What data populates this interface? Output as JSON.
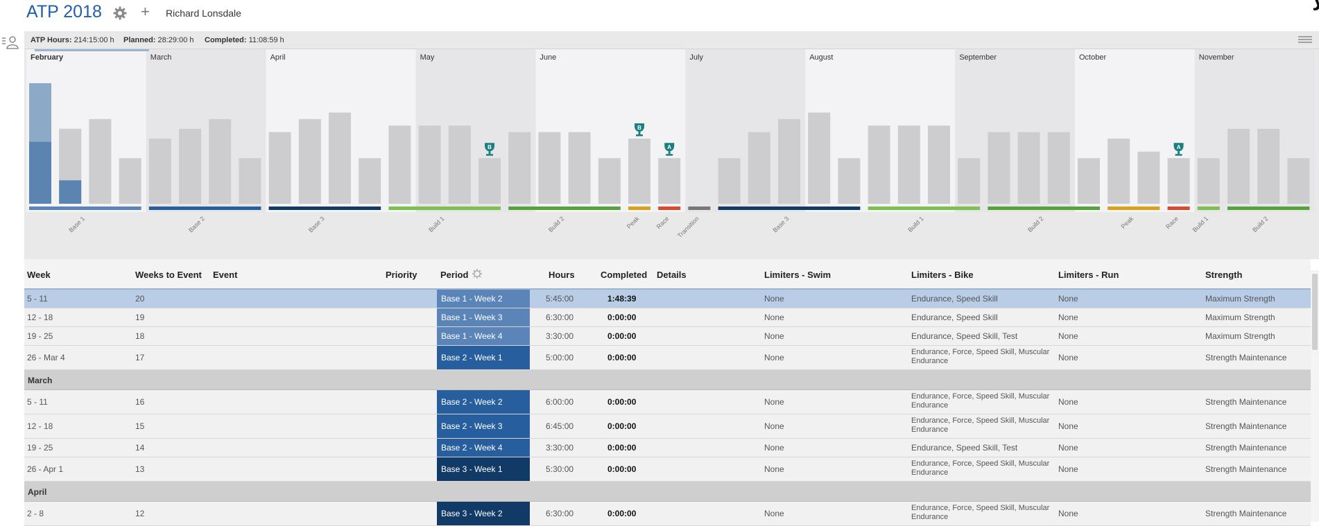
{
  "header": {
    "title": "ATP 2018",
    "athlete": "Richard Lonsdale",
    "corner_text": "y"
  },
  "stats": {
    "atp_hours_label": "ATP Hours:",
    "atp_hours_value": "214:15:00 h",
    "planned_label": "Planned:",
    "planned_value": "28:29:00 h",
    "completed_label": "Completed:",
    "completed_value": "11:08:59 h"
  },
  "chart_data": {
    "type": "bar",
    "months": [
      "February",
      "March",
      "April",
      "May",
      "June",
      "July",
      "August",
      "September",
      "October",
      "November"
    ],
    "weekly_planned_hours": [
      18.5,
      11.5,
      13,
      7,
      10,
      11.5,
      13,
      7,
      11,
      13,
      14,
      7,
      12,
      12,
      12,
      7,
      11,
      11,
      11,
      7,
      10,
      7,
      0,
      7,
      11,
      13,
      14,
      7,
      12,
      12,
      12,
      7,
      11,
      11,
      11,
      7,
      10,
      8,
      7,
      7,
      11.5,
      11.5,
      7
    ],
    "weekly_completed_hours": [
      9.5,
      3.6
    ],
    "events": [
      {
        "week": 15,
        "priority": "B"
      },
      {
        "week": 20,
        "priority": "B"
      },
      {
        "week": 21,
        "priority": "A"
      },
      {
        "week": 38,
        "priority": "A"
      }
    ],
    "periods": [
      {
        "name": "Base 1",
        "start": 0,
        "end": 3,
        "color": "#5b85b8"
      },
      {
        "name": "Base 2",
        "start": 4,
        "end": 7,
        "color": "#275f9e"
      },
      {
        "name": "Base 3",
        "start": 8,
        "end": 11,
        "color": "#123a66"
      },
      {
        "name": "Build 1",
        "start": 12,
        "end": 15,
        "color": "#7cc04f"
      },
      {
        "name": "Build 2",
        "start": 16,
        "end": 19,
        "color": "#54a33c"
      },
      {
        "name": "Peak",
        "start": 20,
        "end": 20,
        "color": "#d9a21c"
      },
      {
        "name": "Race",
        "start": 21,
        "end": 21,
        "color": "#d84a2c"
      },
      {
        "name": "Transition",
        "start": 22,
        "end": 22,
        "color": "#777777"
      },
      {
        "name": "Base 3",
        "start": 23,
        "end": 27,
        "color": "#123a66"
      },
      {
        "name": "Build 1",
        "start": 28,
        "end": 31,
        "color": "#7cc04f"
      },
      {
        "name": "Build 2",
        "start": 32,
        "end": 35,
        "color": "#54a33c"
      },
      {
        "name": "Peak",
        "start": 36,
        "end": 37,
        "color": "#d9a21c"
      },
      {
        "name": "Race",
        "start": 38,
        "end": 38,
        "color": "#d84a2c"
      },
      {
        "name": "Build 1",
        "start": 39,
        "end": 39,
        "color": "#7cc04f"
      },
      {
        "name": "Build 2",
        "start": 40,
        "end": 42,
        "color": "#54a33c"
      }
    ]
  },
  "table": {
    "columns": {
      "week": "Week",
      "weeks_to_event": "Weeks to Event",
      "event": "Event",
      "priority": "Priority",
      "period": "Period",
      "hours": "Hours",
      "completed": "Completed",
      "details": "Details",
      "limiters_swim": "Limiters - Swim",
      "limiters_bike": "Limiters - Bike",
      "limiters_run": "Limiters - Run",
      "strength": "Strength"
    },
    "rows": [
      {
        "week": "5 - 11",
        "wte": "20",
        "period": "Base 1 - Week 2",
        "period_color": "#5b85b8",
        "hours": "5:45:00",
        "completed": "1:48:39",
        "swim": "None",
        "bike": "Endurance, Speed Skill",
        "run": "None",
        "strength": "Maximum Strength"
      },
      {
        "week": "12 - 18",
        "wte": "19",
        "period": "Base 1 - Week 3",
        "period_color": "#5b85b8",
        "hours": "6:30:00",
        "completed": "0:00:00",
        "swim": "None",
        "bike": "Endurance, Speed Skill",
        "run": "None",
        "strength": "Maximum Strength"
      },
      {
        "week": "19 - 25",
        "wte": "18",
        "period": "Base 1 - Week 4",
        "period_color": "#5b85b8",
        "hours": "3:30:00",
        "completed": "0:00:00",
        "swim": "None",
        "bike": "Endurance, Speed Skill, Test",
        "run": "None",
        "strength": "Maximum Strength"
      },
      {
        "week": "26 - Mar 4",
        "wte": "17",
        "period": "Base 2 - Week 1",
        "period_color": "#275f9e",
        "hours": "5:00:00",
        "completed": "0:00:00",
        "swim": "None",
        "bike_1": "Endurance, Force, Speed Skill, Muscular",
        "bike_2": "Endurance",
        "run": "None",
        "strength": "Strength Maintenance"
      },
      {
        "month": "March"
      },
      {
        "week": "5 - 11",
        "wte": "16",
        "period": "Base 2 - Week 2",
        "period_color": "#275f9e",
        "hours": "6:00:00",
        "completed": "0:00:00",
        "swim": "None",
        "bike_1": "Endurance, Force, Speed Skill, Muscular",
        "bike_2": "Endurance",
        "run": "None",
        "strength": "Strength Maintenance"
      },
      {
        "week": "12 - 18",
        "wte": "15",
        "period": "Base 2 - Week 3",
        "period_color": "#275f9e",
        "hours": "6:45:00",
        "completed": "0:00:00",
        "swim": "None",
        "bike_1": "Endurance, Force, Speed Skill, Muscular",
        "bike_2": "Endurance",
        "run": "None",
        "strength": "Strength Maintenance"
      },
      {
        "week": "19 - 25",
        "wte": "14",
        "period": "Base 2 - Week 4",
        "period_color": "#275f9e",
        "hours": "3:30:00",
        "completed": "0:00:00",
        "swim": "None",
        "bike": "Endurance, Speed Skill, Test",
        "run": "None",
        "strength": "Strength Maintenance"
      },
      {
        "week": "26 - Apr 1",
        "wte": "13",
        "period": "Base 3 - Week 1",
        "period_color": "#123a66",
        "hours": "5:30:00",
        "completed": "0:00:00",
        "swim": "None",
        "bike_1": "Endurance, Force, Speed Skill, Muscular",
        "bike_2": "Endurance",
        "run": "None",
        "strength": "Strength Maintenance"
      },
      {
        "month": "April"
      },
      {
        "week": "2 - 8",
        "wte": "12",
        "period": "Base 3 - Week 2",
        "period_color": "#123a66",
        "hours": "6:30:00",
        "completed": "0:00:00",
        "swim": "None",
        "bike_1": "Endurance, Force, Speed Skill, Muscular",
        "bike_2": "Endurance",
        "run": "None",
        "strength": "Strength Maintenance"
      }
    ]
  }
}
